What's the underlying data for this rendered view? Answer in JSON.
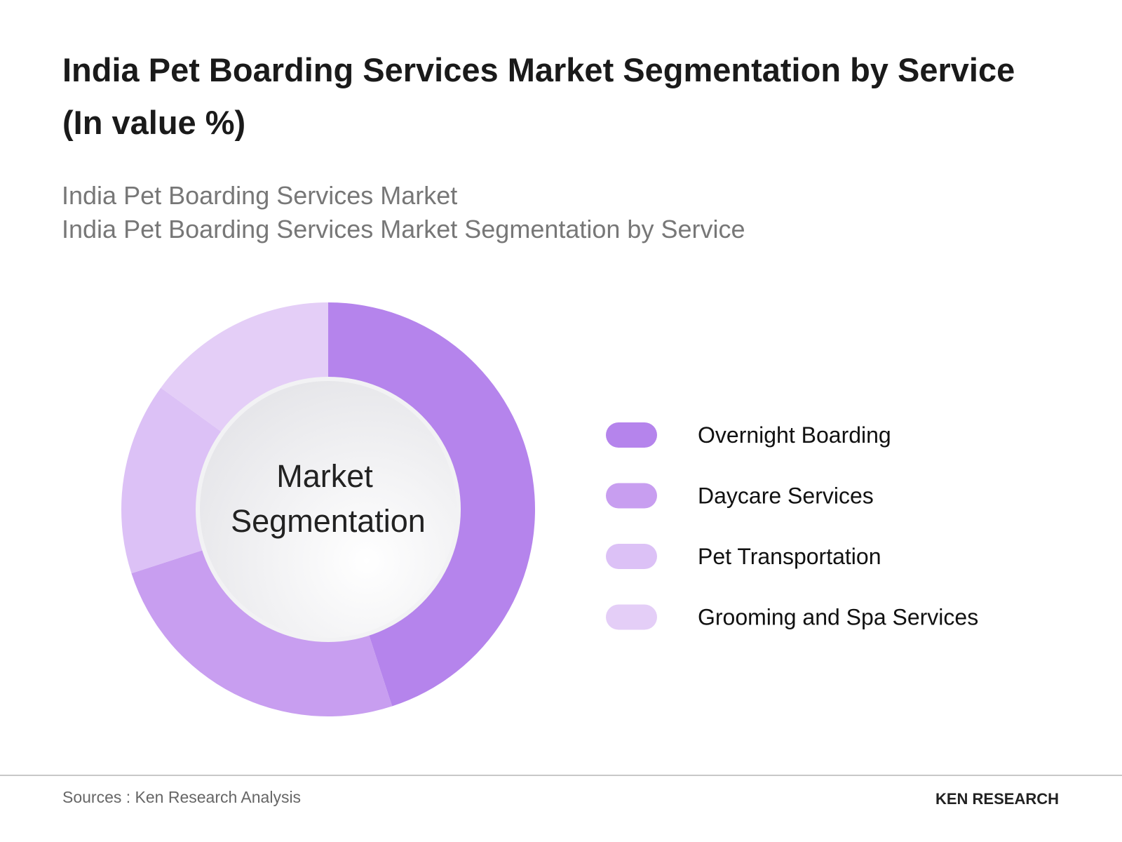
{
  "chart_data": {
    "type": "donut",
    "title": "India Pet Boarding Services Market Segmentation by Service (In value %)",
    "subtitle": [
      "India Pet Boarding Services Market",
      "India Pet Boarding Services Market Segmentation by Service"
    ],
    "center_label": "Market Segmentation",
    "categories": [
      "Overnight Boarding",
      "Daycare Services",
      "Pet Transportation",
      "Grooming and Spa Services"
    ],
    "values": [
      45,
      25,
      15,
      15
    ],
    "colors": [
      "#b584ec",
      "#c89ef0",
      "#dcc1f6",
      "#e4cef7"
    ]
  },
  "footer": {
    "source": "Sources : Ken Research Analysis",
    "logo": "KEN RESEARCH"
  }
}
